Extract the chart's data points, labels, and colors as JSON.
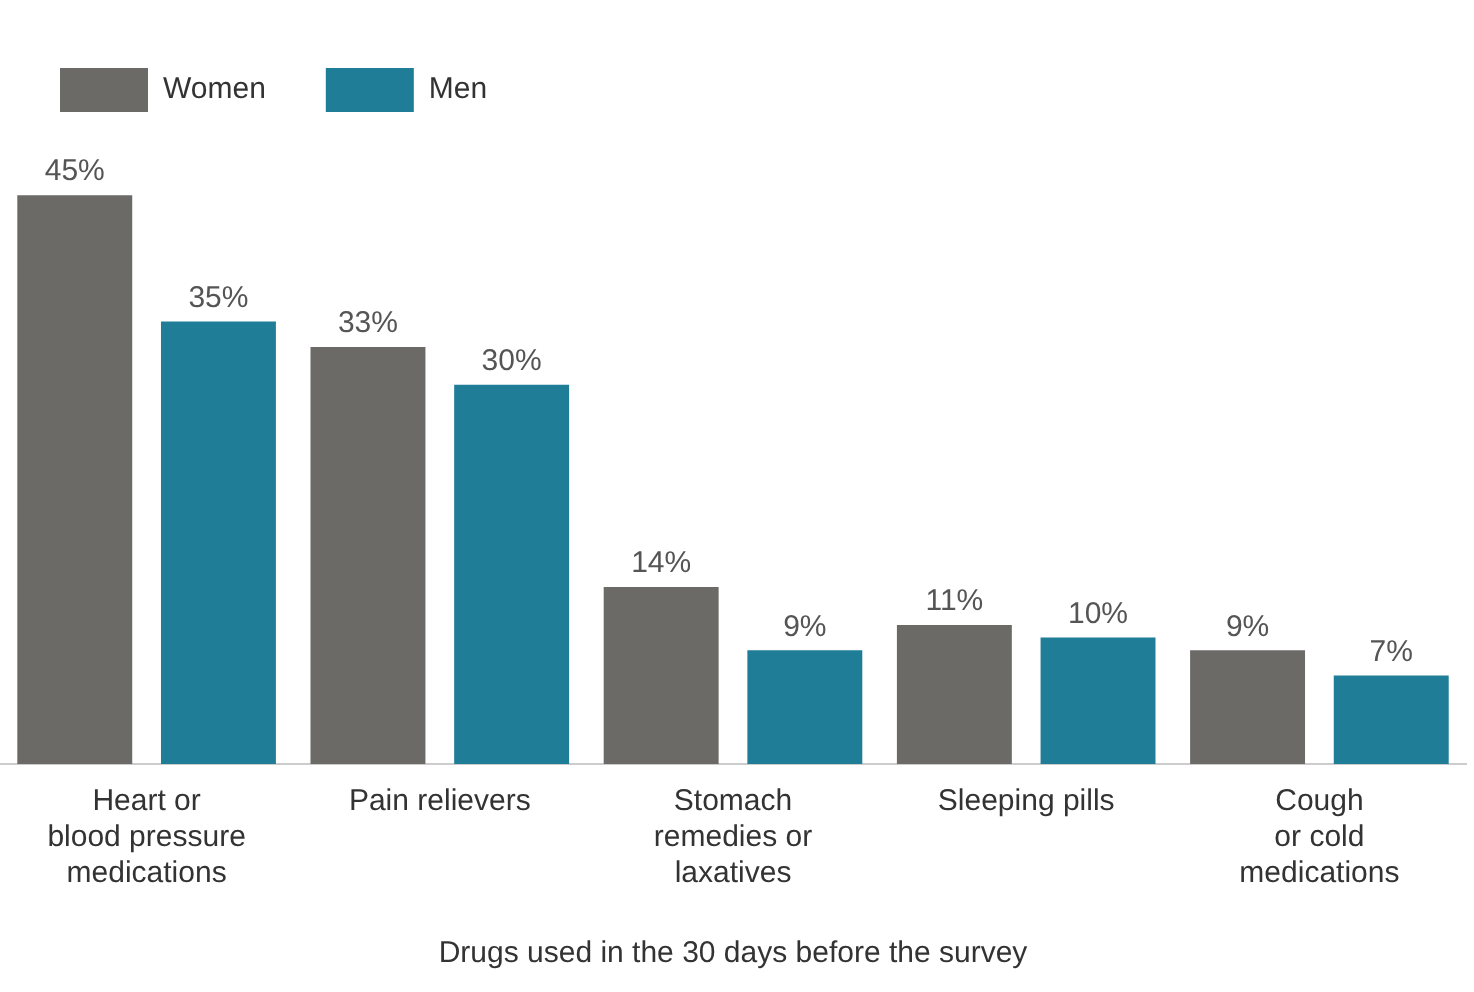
{
  "chart_data": {
    "type": "bar",
    "xlabel": "Drugs used in the 30 days before the survey",
    "categories": [
      "Heart or\nblood pressure\nmedications",
      "Pain relievers",
      "Stomach\nremedies or\nlaxatives",
      "Sleeping pills",
      "Cough\nor cold\nmedications"
    ],
    "series": [
      {
        "name": "Women",
        "color": "#6b6a67",
        "values": [
          45,
          33,
          14,
          11,
          9
        ],
        "value_labels": [
          "45%",
          "33%",
          "14%",
          "11%",
          "9%"
        ]
      },
      {
        "name": "Men",
        "color": "#1f7d98",
        "values": [
          35,
          30,
          9,
          10,
          7
        ],
        "value_labels": [
          "35%",
          "30%",
          "9%",
          "10%",
          "7%"
        ]
      }
    ],
    "legend": "top left",
    "grid": false
  }
}
